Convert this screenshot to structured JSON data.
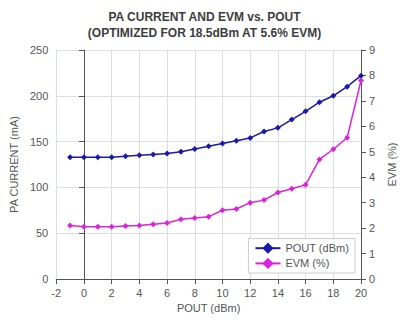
{
  "chart_data": {
    "type": "line",
    "title": "PA CURRENT AND EVM vs. POUT\n(OPTIMIZED FOR 18.5dBm AT 5.6% EVM)",
    "xlabel": "POUT (dBm)",
    "ylabel": "PA CURRENT (mA)",
    "y2label": "EVM (%)",
    "xlim": [
      -2,
      20
    ],
    "xticks": [
      -2,
      0,
      2,
      4,
      6,
      8,
      10,
      12,
      14,
      16,
      18,
      20
    ],
    "ylim": [
      0,
      250
    ],
    "yticks": [
      0,
      50,
      100,
      150,
      200,
      250
    ],
    "y2lim": [
      0,
      9
    ],
    "y2ticks": [
      0,
      1,
      2,
      3,
      4,
      5,
      6,
      7,
      8,
      9
    ],
    "x": [
      -1,
      0,
      1,
      2,
      3,
      4,
      5,
      6,
      7,
      8,
      9,
      10,
      11,
      12,
      13,
      14,
      15,
      16,
      17,
      18,
      19,
      20
    ],
    "series": [
      {
        "name": "POUT (dBm)",
        "color": "#1a1aaa",
        "marker": "diamond",
        "values": [
          133,
          133,
          133,
          133,
          134,
          135,
          136,
          137,
          139,
          142,
          145,
          148,
          151,
          154,
          161,
          165,
          174,
          183,
          193,
          200,
          210,
          222
        ]
      },
      {
        "name": "EVM (%)",
        "color": "#dd22dd",
        "marker": "diamond",
        "axis": "y2",
        "values": [
          2.1,
          2.05,
          2.05,
          2.05,
          2.08,
          2.1,
          2.15,
          2.2,
          2.35,
          2.4,
          2.45,
          2.7,
          2.75,
          3.0,
          3.1,
          3.4,
          3.55,
          3.7,
          4.7,
          5.1,
          5.55,
          7.8
        ]
      }
    ],
    "grid": true,
    "legend": "lower right"
  }
}
